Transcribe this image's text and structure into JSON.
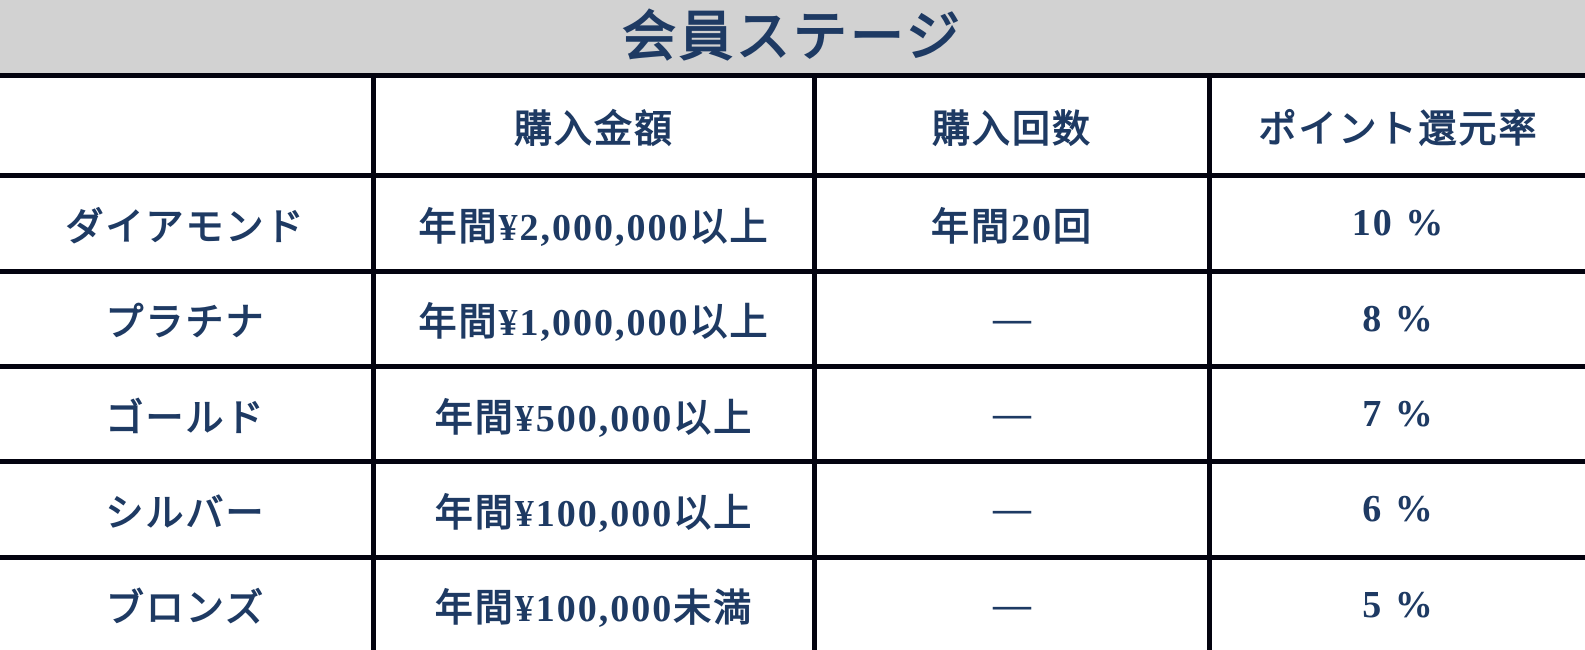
{
  "colors": {
    "text_navy": "#1e3a63",
    "border": "#03030f",
    "title_background": "#d2d2d2",
    "cell_background": "#ffffff"
  },
  "chart_data": {
    "type": "table",
    "title": "会員ステージ",
    "columns": [
      "",
      "購入金額",
      "購入回数",
      "ポイント還元率"
    ],
    "rows": [
      {
        "stage": "ダイアモンド",
        "amount": "年間¥2,000,000以上",
        "count": "年間20回",
        "rate": "10 %"
      },
      {
        "stage": "プラチナ",
        "amount": "年間¥1,000,000以上",
        "count": "—",
        "rate": "8 %"
      },
      {
        "stage": "ゴールド",
        "amount": "年間¥500,000以上",
        "count": "—",
        "rate": "7 %"
      },
      {
        "stage": "シルバー",
        "amount": "年間¥100,000以上",
        "count": "—",
        "rate": "6 %"
      },
      {
        "stage": "ブロンズ",
        "amount": "年間¥100,000未満",
        "count": "—",
        "rate": "5 %"
      }
    ]
  }
}
